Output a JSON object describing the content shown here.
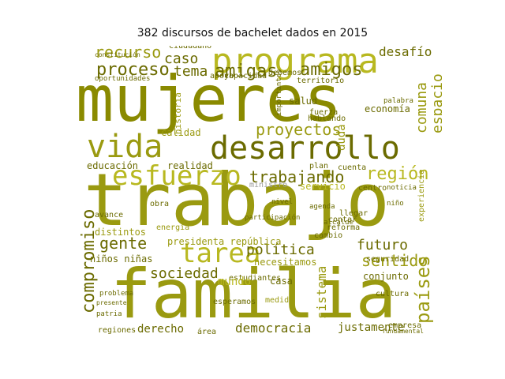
{
  "title": "382 discursos de bachelet dados en 2015",
  "colors": {
    "dark": "#6b6b00",
    "mid": "#8a8a00",
    "olive": "#9a9a10",
    "light": "#b8b820",
    "pale": "#c8c860",
    "gray": "#9a9a9a"
  },
  "words": [
    {
      "text": "mujeres",
      "tone": "mid"
    },
    {
      "text": "trabajo",
      "tone": "olive"
    },
    {
      "text": "familia",
      "tone": "olive"
    },
    {
      "text": "desarrollo",
      "tone": "dark"
    },
    {
      "text": "programa",
      "tone": "light"
    },
    {
      "text": "esfuerzo",
      "tone": "light"
    },
    {
      "text": "vida",
      "tone": "olive"
    },
    {
      "text": "tarea",
      "tone": "light"
    },
    {
      "text": "amigas",
      "tone": "dark"
    },
    {
      "text": "amigos",
      "tone": "dark"
    },
    {
      "text": "proyectos",
      "tone": "olive"
    },
    {
      "text": "trabajando",
      "tone": "dark"
    },
    {
      "text": "región",
      "tone": "light"
    },
    {
      "text": "política",
      "tone": "dark"
    },
    {
      "text": "sociedad",
      "tone": "dark"
    },
    {
      "text": "futuro",
      "tone": "dark"
    },
    {
      "text": "sentido",
      "tone": "olive"
    },
    {
      "text": "países",
      "tone": "olive"
    },
    {
      "text": "compromiso",
      "tone": "dark"
    },
    {
      "text": "democracia",
      "tone": "dark"
    },
    {
      "text": "justamente",
      "tone": "dark"
    },
    {
      "text": "gente",
      "tone": "dark"
    },
    {
      "text": "proceso",
      "tone": "dark"
    },
    {
      "text": "recurso",
      "tone": "olive"
    },
    {
      "text": "caso",
      "tone": "dark"
    },
    {
      "text": "tema",
      "tone": "dark"
    },
    {
      "text": "desafío",
      "tone": "dark"
    },
    {
      "text": "comuna",
      "tone": "olive"
    },
    {
      "text": "espacio",
      "tone": "olive"
    },
    {
      "text": "educación",
      "tone": "dark"
    },
    {
      "text": "derecho",
      "tone": "dark"
    },
    {
      "text": "conjunto",
      "tone": "dark"
    },
    {
      "text": "niños niñas",
      "tone": "dark"
    },
    {
      "text": "ciudadano",
      "tone": "dark"
    },
    {
      "text": "oportunidades",
      "tone": "dark"
    },
    {
      "text": "constitución",
      "tone": "dark"
    },
    {
      "text": "apoyo",
      "tone": "dark"
    },
    {
      "text": "capacidad",
      "tone": "dark"
    },
    {
      "text": "territorio",
      "tone": "dark"
    },
    {
      "text": "debemos",
      "tone": "dark"
    },
    {
      "text": "salud",
      "tone": "dark"
    },
    {
      "text": "duda",
      "tone": "olive"
    },
    {
      "text": "economía",
      "tone": "dark"
    },
    {
      "text": "realidad",
      "tone": "dark"
    },
    {
      "text": "calidad",
      "tone": "olive"
    },
    {
      "text": "historia",
      "tone": "olive"
    },
    {
      "text": "plan",
      "tone": "dark"
    },
    {
      "text": "ministro",
      "tone": "gray"
    },
    {
      "text": "servicio",
      "tone": "light"
    },
    {
      "text": "centro",
      "tone": "dark"
    },
    {
      "text": "cuenta",
      "tone": "dark"
    },
    {
      "text": "agenda",
      "tone": "dark"
    },
    {
      "text": "obra",
      "tone": "dark"
    },
    {
      "text": "energía",
      "tone": "olive"
    },
    {
      "text": "presidenta república",
      "tone": "olive"
    },
    {
      "text": "cambio",
      "tone": "dark"
    },
    {
      "text": "seguridad",
      "tone": "dark"
    },
    {
      "text": "necesitamos",
      "tone": "olive"
    },
    {
      "text": "casa",
      "tone": "dark"
    },
    {
      "text": "empresa",
      "tone": "dark"
    },
    {
      "text": "fundamental",
      "tone": "dark"
    },
    {
      "text": "regiones",
      "tone": "dark"
    },
    {
      "text": "área",
      "tone": "dark"
    },
    {
      "text": "sistema",
      "tone": "olive"
    },
    {
      "text": "cultura",
      "tone": "dark"
    },
    {
      "text": "experiencia",
      "tone": "olive"
    },
    {
      "text": "avance",
      "tone": "dark"
    },
    {
      "text": "contar",
      "tone": "dark"
    },
    {
      "text": "llegar",
      "tone": "dark"
    },
    {
      "text": "reforma",
      "tone": "dark"
    },
    {
      "text": "alcalde",
      "tone": "dark"
    },
    {
      "text": "nivel",
      "tone": "dark"
    },
    {
      "text": "estudiantes",
      "tone": "dark"
    },
    {
      "text": "medida",
      "tone": "olive"
    },
    {
      "text": "mundo",
      "tone": "light"
    },
    {
      "text": "fuerza",
      "tone": "dark"
    },
    {
      "text": "hablando",
      "tone": "dark"
    },
    {
      "text": "importantes",
      "tone": "dark"
    },
    {
      "text": "participación",
      "tone": "dark"
    },
    {
      "text": "esperamos",
      "tone": "dark"
    },
    {
      "text": "palabra",
      "tone": "dark"
    },
    {
      "text": "niño",
      "tone": "dark"
    },
    {
      "text": "noticia",
      "tone": "dark"
    },
    {
      "text": "problema",
      "tone": "dark"
    },
    {
      "text": "presente",
      "tone": "dark"
    },
    {
      "text": "distintos",
      "tone": "olive"
    },
    {
      "text": "patria",
      "tone": "dark"
    }
  ]
}
